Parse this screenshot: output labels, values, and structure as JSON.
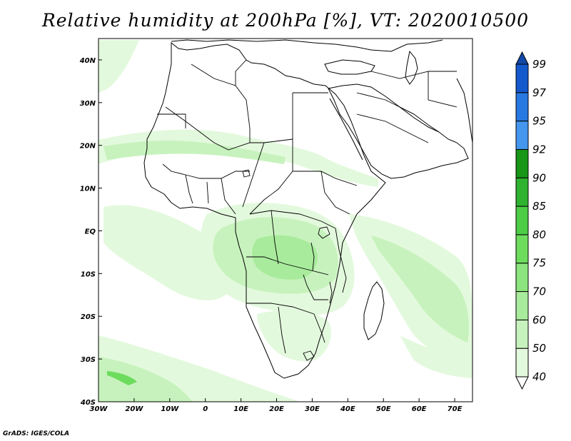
{
  "title": "Relative humidity at 200hPa [%], VT: 2020010500",
  "credit": "GrADS: IGES/COLA",
  "map": {
    "lon_range": [
      -30,
      75
    ],
    "lat_range": [
      -40,
      45
    ],
    "lon_ticks": [
      {
        "v": -30,
        "label": "30W"
      },
      {
        "v": -20,
        "label": "20W"
      },
      {
        "v": -10,
        "label": "10W"
      },
      {
        "v": 0,
        "label": "0"
      },
      {
        "v": 10,
        "label": "10E"
      },
      {
        "v": 20,
        "label": "20E"
      },
      {
        "v": 30,
        "label": "30E"
      },
      {
        "v": 40,
        "label": "40E"
      },
      {
        "v": 50,
        "label": "50E"
      },
      {
        "v": 60,
        "label": "60E"
      },
      {
        "v": 70,
        "label": "70E"
      }
    ],
    "lat_ticks": [
      {
        "v": 40,
        "label": "40N"
      },
      {
        "v": 30,
        "label": "30N"
      },
      {
        "v": 20,
        "label": "20N"
      },
      {
        "v": 10,
        "label": "10N"
      },
      {
        "v": 0,
        "label": "EQ"
      },
      {
        "v": -10,
        "label": "10S"
      },
      {
        "v": -20,
        "label": "20S"
      },
      {
        "v": -30,
        "label": "30S"
      },
      {
        "v": -40,
        "label": "40S"
      }
    ]
  },
  "colorbar": {
    "levels": [
      "40",
      "50",
      "60",
      "70",
      "75",
      "80",
      "85",
      "90",
      "92",
      "95",
      "97",
      "99"
    ],
    "colors": [
      "#ffffff",
      "#e3f9dd",
      "#c7f2bd",
      "#a8eb9c",
      "#8be47d",
      "#6ddc5d",
      "#4dcc46",
      "#2fb22f",
      "#179617",
      "#4596ee",
      "#2778e0",
      "#1459cc",
      "#1248a8"
    ]
  },
  "colors": {
    "low": "#e3f9dd",
    "mid": "#c7f2bd",
    "high": "#a8eb9c",
    "peak": "#6ddc5d"
  }
}
